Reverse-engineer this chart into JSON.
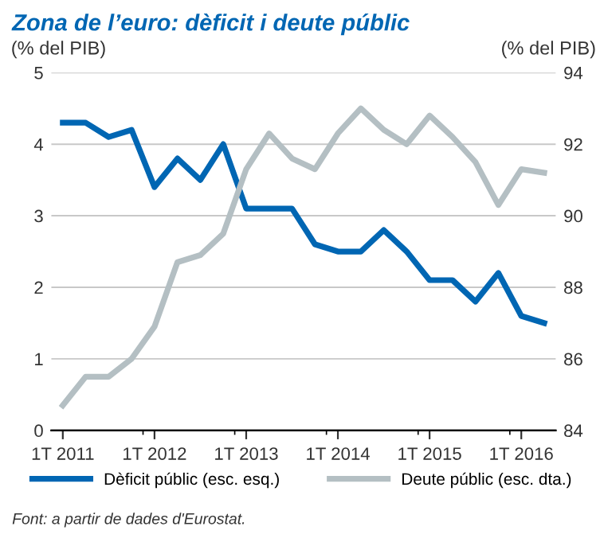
{
  "chart_data": {
    "type": "line",
    "title": "Zona de l’euro: dèficit i deute públic",
    "ylabel": "(% del PIB)",
    "y2label": "(% del PIB)",
    "categories": [
      "1T 2011",
      null,
      null,
      null,
      "1T 2012",
      null,
      null,
      null,
      "1T 2013",
      null,
      null,
      null,
      "1T 2014",
      null,
      null,
      null,
      "1T 2015",
      null,
      null,
      null,
      "1T 2016",
      null
    ],
    "series": [
      {
        "name": "Dèficit públic (esc. esq.)",
        "color": "#0066b3",
        "values": [
          4.3,
          4.3,
          4.1,
          4.2,
          3.4,
          3.8,
          3.5,
          4.0,
          3.1,
          3.1,
          3.1,
          2.6,
          2.5,
          2.5,
          2.8,
          2.5,
          2.1,
          2.1,
          1.8,
          2.2,
          1.6,
          1.5
        ]
      },
      {
        "name": "Deute públic (esc. dta.)",
        "color": "#b4bfc3",
        "axis": "y2",
        "values": [
          84.7,
          85.5,
          85.5,
          86.0,
          86.9,
          88.7,
          88.9,
          89.5,
          91.3,
          92.3,
          91.6,
          91.3,
          92.3,
          93.0,
          92.4,
          92.0,
          92.8,
          92.2,
          91.5,
          90.3,
          91.3,
          91.2
        ]
      }
    ],
    "ylim": [
      0,
      5
    ],
    "yticks": [
      0,
      1,
      2,
      3,
      4,
      5
    ],
    "y2lim": [
      84,
      94
    ],
    "y2ticks": [
      84,
      86,
      88,
      90,
      92,
      94
    ],
    "grid": "y",
    "legend": "bottom",
    "marker": "none",
    "line_style": "solid",
    "annotations": [
      "Font: a partir de dades d'Eurostat."
    ]
  }
}
